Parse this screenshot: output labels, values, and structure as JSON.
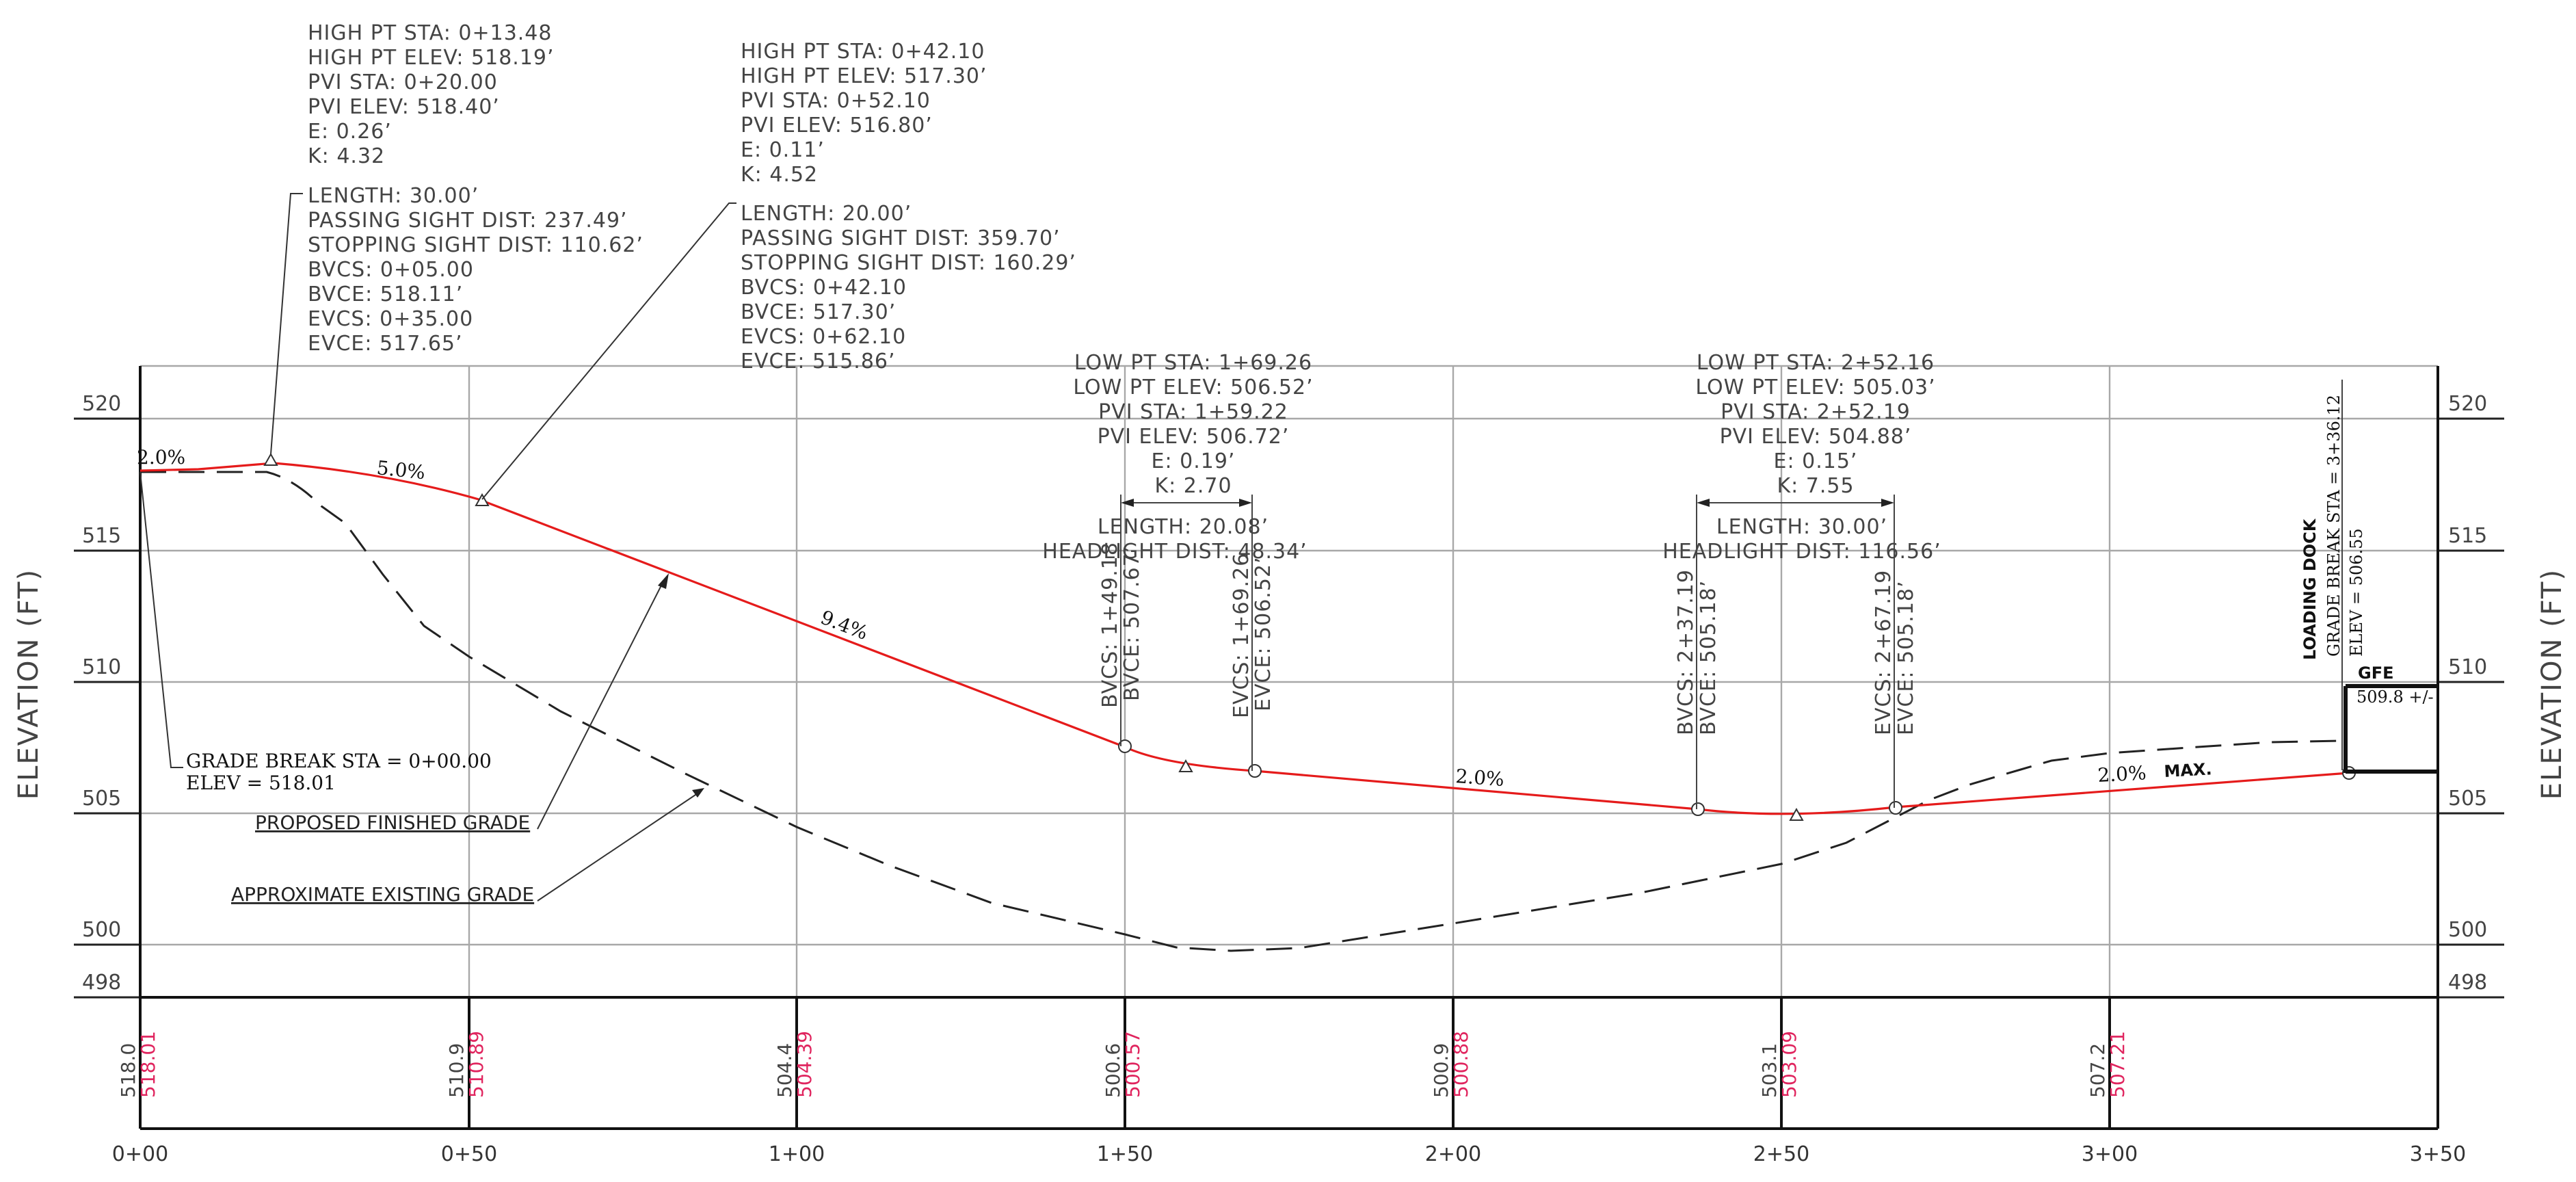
{
  "axes": {
    "y_title": "ELEVATION (FT)",
    "y_ticks": [
      "520",
      "515",
      "510",
      "505",
      "500",
      "498"
    ],
    "x_ticks": [
      "0+00",
      "0+50",
      "1+00",
      "1+50",
      "2+00",
      "2+50",
      "3+00",
      "3+50"
    ]
  },
  "vc1": {
    "lines": [
      "HIGH PT STA: 0+13.48",
      "HIGH PT ELEV: 518.19’",
      "PVI STA: 0+20.00",
      "PVI ELEV: 518.40’",
      "E: 0.26’",
      "K: 4.32"
    ],
    "lines2": [
      "LENGTH: 30.00’",
      "PASSING SIGHT DIST: 237.49’",
      "STOPPING SIGHT DIST: 110.62’",
      "BVCS: 0+05.00",
      "BVCE: 518.11’",
      "EVCS: 0+35.00",
      "EVCE: 517.65’"
    ]
  },
  "vc2": {
    "lines": [
      "HIGH PT STA: 0+42.10",
      "HIGH PT ELEV: 517.30’",
      "PVI STA: 0+52.10",
      "PVI ELEV: 516.80’",
      "E: 0.11’",
      "K: 4.52"
    ],
    "lines2": [
      "LENGTH: 20.00’",
      "PASSING SIGHT DIST: 359.70’",
      "STOPPING SIGHT DIST: 160.29’",
      "BVCS: 0+42.10",
      "BVCE: 517.30’",
      "EVCS: 0+62.10",
      "EVCE: 515.86’"
    ]
  },
  "vc3": {
    "lines": [
      "LOW PT STA: 1+69.26",
      "LOW PT ELEV: 506.52’",
      "PVI STA: 1+59.22",
      "PVI ELEV: 506.72’",
      "E: 0.19’",
      "K: 2.70"
    ],
    "length": "LENGTH: 20.08’",
    "headlight": "HEADLIGHT DIST: 48.34’",
    "bvcs": "BVCS: 1+49.18",
    "bvce": "BVCE: 507.67’",
    "evcs": "EVCS: 1+69.26",
    "evce": "EVCE: 506.52’"
  },
  "vc4": {
    "lines": [
      "LOW PT STA: 2+52.16",
      "LOW PT ELEV: 505.03’",
      "PVI STA: 2+52.19",
      "PVI ELEV: 504.88’",
      "E: 0.15’",
      "K: 7.55"
    ],
    "length": "LENGTH: 30.00’",
    "headlight": "HEADLIGHT DIST: 116.56’",
    "bvcs": "BVCS: 2+37.19",
    "bvce": "BVCE: 505.18’",
    "evcs": "EVCS: 2+67.19",
    "evce": "EVCE: 505.18’"
  },
  "grades": {
    "g1": "2.0%",
    "g2": "5.0%",
    "g3": "9.4%",
    "g4": "2.0%",
    "g5": "2.0%",
    "max": "MAX."
  },
  "labels": {
    "grade_break_1": "GRADE BREAK STA = 0+00.00",
    "grade_break_2": "ELEV = 518.01",
    "proposed": "PROPOSED FINISHED GRADE",
    "existing": "APPROXIMATE EXISTING GRADE",
    "dock_1": "LOADING DOCK",
    "dock_2": "GRADE BREAK STA = 3+36.12",
    "dock_3": "ELEV = 506.55",
    "gfe": "GFE",
    "gfe_elev": "509.8 +/-"
  },
  "table": [
    {
      "existing": "518.0",
      "proposed": "518.01"
    },
    {
      "existing": "510.9",
      "proposed": "510.89"
    },
    {
      "existing": "504.4",
      "proposed": "504.39"
    },
    {
      "existing": "500.6",
      "proposed": "500.57"
    },
    {
      "existing": "500.9",
      "proposed": "500.88"
    },
    {
      "existing": "503.1",
      "proposed": "503.09"
    },
    {
      "existing": "507.2",
      "proposed": "507.21"
    }
  ],
  "chart_data": {
    "type": "line",
    "ylabel": "ELEVATION (FT)",
    "xlim": [
      "0+00",
      "3+50"
    ],
    "ylim": [
      498,
      520
    ],
    "grid": true,
    "series": [
      {
        "name": "PROPOSED FINISHED GRADE",
        "color": "#e51b1b",
        "points": [
          [
            "0+00",
            518.01
          ],
          [
            "0+05",
            518.11
          ],
          [
            "0+13.48",
            518.19
          ],
          [
            "0+35",
            517.65
          ],
          [
            "0+42.10",
            517.3
          ],
          [
            "0+62.10",
            515.86
          ],
          [
            "1+49.18",
            507.67
          ],
          [
            "1+59.22",
            506.8
          ],
          [
            "1+69.26",
            506.52
          ],
          [
            "2+37.19",
            505.18
          ],
          [
            "2+52.19",
            505.03
          ],
          [
            "2+67.19",
            505.18
          ],
          [
            "3+36.12",
            506.55
          ]
        ]
      },
      {
        "name": "APPROXIMATE EXISTING GRADE",
        "color": "#222222",
        "points": [
          [
            "0+00",
            518.0
          ],
          [
            "0+19",
            518.0
          ],
          [
            "0+30",
            516.6
          ],
          [
            "0+44",
            512.2
          ],
          [
            "0+50",
            510.9
          ],
          [
            "0+82",
            507.0
          ],
          [
            "1+00",
            504.4
          ],
          [
            "1+50",
            500.6
          ],
          [
            "1+65",
            499.8
          ],
          [
            "1+70",
            499.8
          ],
          [
            "2+00",
            500.9
          ],
          [
            "2+50",
            503.1
          ],
          [
            "2+77",
            506.0
          ],
          [
            "2+92",
            506.7
          ],
          [
            "3+00",
            507.2
          ],
          [
            "3+25",
            507.6
          ],
          [
            "3+36",
            507.9
          ]
        ]
      }
    ]
  }
}
